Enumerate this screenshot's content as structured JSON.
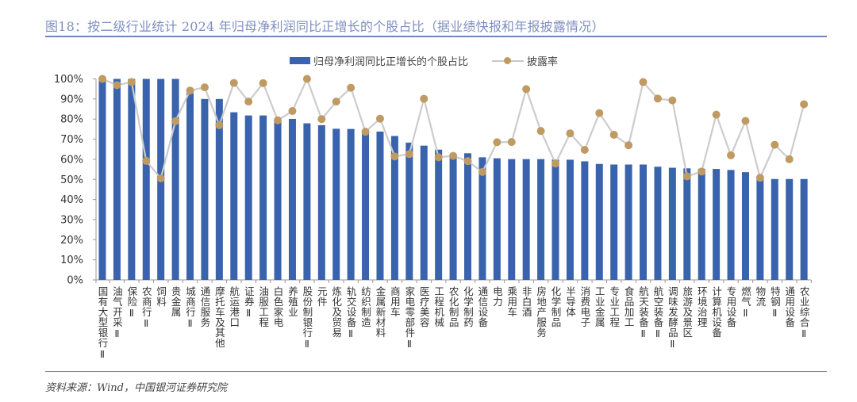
{
  "title": "图18：按二级行业统计 2024 年归母净利润同比正增长的个股占比（据业绩快报和年报披露情况）",
  "source": "资料来源：Wind，中国银河证券研究院",
  "chart_data": {
    "type": "bar+line",
    "title": "",
    "ylim": [
      0,
      100
    ],
    "ytick_step": 10,
    "ytick_format": "percent",
    "grid": false,
    "legend_position": "top",
    "categories": [
      "国有大型银行Ⅱ",
      "油气开采Ⅱ",
      "保险Ⅱ",
      "农商行Ⅱ",
      "饲料",
      "贵金属",
      "城商行Ⅱ",
      "通信服务",
      "摩托车及其他",
      "航运港口",
      "证券Ⅱ",
      "油服工程",
      "白色家电",
      "养殖业",
      "股份制银行Ⅱ",
      "元件",
      "炼化及贸易",
      "轨交设备Ⅱ",
      "纺织制造",
      "金属新材料",
      "商用车",
      "家电零部件Ⅱ",
      "医疗美容",
      "工程机械",
      "农化制品",
      "化学制药",
      "通信设备",
      "电力",
      "乘用车",
      "非白酒",
      "房地产服务",
      "化学制品",
      "半导体",
      "消费电子",
      "工业金属",
      "专业工程",
      "食品加工",
      "航天装备Ⅱ",
      "航空装备Ⅱ",
      "调味发酵品Ⅱ",
      "旅游及景区",
      "环境治理",
      "计算机设备",
      "专用设备",
      "燃气Ⅱ",
      "物流",
      "特钢Ⅱ",
      "通用设备",
      "农业综合Ⅱ"
    ],
    "series": [
      {
        "name": "归母净利润同比正增长的个股占比",
        "type": "bar",
        "color": "#3a63ad",
        "values": [
          100,
          100,
          100,
          100,
          100,
          100,
          93,
          90,
          90,
          83.4,
          81.8,
          81.8,
          79.5,
          80.1,
          77.9,
          77,
          75.2,
          75.1,
          74,
          73.8,
          71.6,
          68.3,
          66.8,
          64.8,
          62.5,
          63,
          61,
          60.5,
          60.1,
          60.1,
          60.1,
          59.9,
          59.8,
          59,
          57.7,
          57.4,
          57.4,
          57.4,
          56.3,
          55.8,
          55.5,
          55.3,
          55.2,
          54.7,
          53.6,
          51,
          50.2,
          50.2,
          50.2
        ]
      },
      {
        "name": "披露率",
        "type": "line",
        "color": "#bf9a63",
        "line_color": "#cccccc",
        "values": [
          100,
          96.9,
          98.4,
          59.2,
          50.5,
          79,
          94.2,
          95.8,
          77,
          98,
          88.7,
          97.9,
          79.4,
          84,
          100,
          80,
          88.7,
          95.6,
          73.7,
          80.2,
          61.4,
          62.6,
          90.1,
          61,
          61.7,
          59.1,
          53.7,
          68.5,
          68.6,
          94.9,
          74.1,
          57.9,
          72.9,
          64.7,
          83,
          72.2,
          67,
          98.4,
          90.2,
          89.3,
          51.5,
          53.9,
          82.2,
          62,
          79.1,
          50.8,
          67.2,
          60,
          87.4
        ]
      }
    ]
  }
}
